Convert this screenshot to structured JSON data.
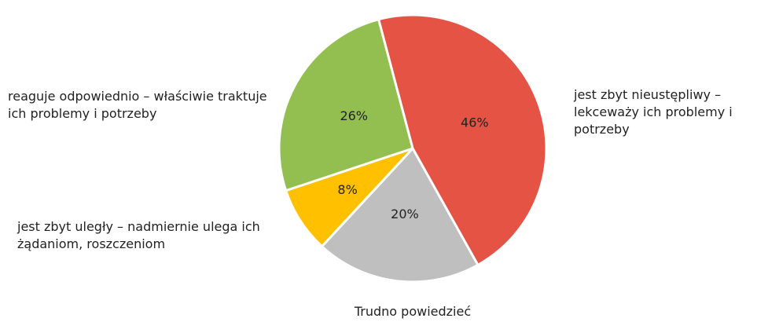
{
  "chart_data": {
    "type": "pie",
    "categories": [
      "jest zbyt nieustępliwy – lekceważy ich problemy i potrzeby",
      "Trudno powiedzieć",
      "jest zbyt uległy – nadmiernie ulega ich żądaniom, roszczeniom",
      "reaguje odpowiednio – właściwie traktuje ich problemy i potrzeby"
    ],
    "values": [
      46,
      20,
      8,
      26
    ],
    "value_labels": [
      "46%",
      "20%",
      "8%",
      "26%"
    ],
    "colors": [
      "#e45343",
      "#bfbfbf",
      "#ffc000",
      "#92bf4f"
    ]
  }
}
